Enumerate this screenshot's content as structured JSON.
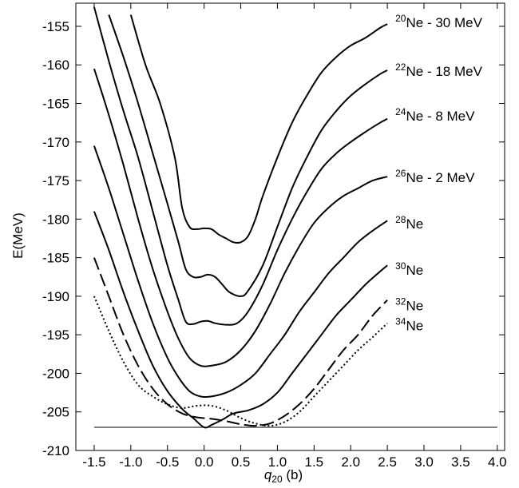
{
  "chart_data": {
    "type": "line",
    "xlabel": {
      "base": "q",
      "sub": "20",
      "unit": " (b)"
    },
    "ylabel": "E(MeV)",
    "xlim": [
      -1.75,
      4.1
    ],
    "ylim": [
      -210,
      -152
    ],
    "xticks": [
      {
        "value": -1.5,
        "label": "-1.5"
      },
      {
        "value": -1.0,
        "label": "-1.0"
      },
      {
        "value": -0.5,
        "label": "-0.5"
      },
      {
        "value": 0.0,
        "label": "0.0"
      },
      {
        "value": 0.5,
        "label": "0.5"
      },
      {
        "value": 1.0,
        "label": "1.0"
      },
      {
        "value": 1.5,
        "label": "1.5"
      },
      {
        "value": 2.0,
        "label": "2.0"
      },
      {
        "value": 2.5,
        "label": "2.5"
      },
      {
        "value": 3.0,
        "label": "3.0"
      },
      {
        "value": 3.5,
        "label": "3.5"
      },
      {
        "value": 4.0,
        "label": "4.0"
      }
    ],
    "yticks": [
      {
        "value": -155,
        "label": "-155"
      },
      {
        "value": -160,
        "label": "-160"
      },
      {
        "value": -165,
        "label": "-165"
      },
      {
        "value": -170,
        "label": "-170"
      },
      {
        "value": -175,
        "label": "-175"
      },
      {
        "value": -180,
        "label": "-180"
      },
      {
        "value": -185,
        "label": "-185"
      },
      {
        "value": -190,
        "label": "-190"
      },
      {
        "value": -195,
        "label": "-195"
      },
      {
        "value": -200,
        "label": "-200"
      },
      {
        "value": -205,
        "label": "-205"
      },
      {
        "value": -210,
        "label": "-210"
      }
    ],
    "reference_line": {
      "y": -207,
      "x": [
        -1.5,
        4.0
      ]
    },
    "series": [
      {
        "mass": "20",
        "element": "Ne",
        "suffix": " - 30 MeV",
        "dash": "solid",
        "label_y": -154.5,
        "points": [
          [
            -1.0,
            -153.5
          ],
          [
            -0.8,
            -160
          ],
          [
            -0.6,
            -165
          ],
          [
            -0.4,
            -172
          ],
          [
            -0.3,
            -178.5
          ],
          [
            -0.2,
            -181
          ],
          [
            -0.1,
            -181.3
          ],
          [
            0.0,
            -181.2
          ],
          [
            0.1,
            -181.3
          ],
          [
            0.2,
            -182
          ],
          [
            0.3,
            -182.5
          ],
          [
            0.4,
            -183
          ],
          [
            0.5,
            -183
          ],
          [
            0.6,
            -182.2
          ],
          [
            0.7,
            -180
          ],
          [
            0.8,
            -177
          ],
          [
            1.0,
            -172
          ],
          [
            1.2,
            -167.5
          ],
          [
            1.4,
            -164
          ],
          [
            1.6,
            -161
          ],
          [
            1.8,
            -159
          ],
          [
            2.0,
            -157.5
          ],
          [
            2.2,
            -156.5
          ],
          [
            2.4,
            -155.2
          ],
          [
            2.5,
            -154.7
          ]
        ]
      },
      {
        "mass": "22",
        "element": "Ne",
        "suffix": " - 18 MeV",
        "dash": "solid",
        "label_y": -160.8,
        "points": [
          [
            -1.3,
            -153.5
          ],
          [
            -1.1,
            -159
          ],
          [
            -0.9,
            -165
          ],
          [
            -0.7,
            -171.5
          ],
          [
            -0.5,
            -178
          ],
          [
            -0.35,
            -183
          ],
          [
            -0.25,
            -186.5
          ],
          [
            -0.15,
            -187.5
          ],
          [
            -0.05,
            -187.5
          ],
          [
            0.05,
            -187.2
          ],
          [
            0.15,
            -187.5
          ],
          [
            0.25,
            -188.5
          ],
          [
            0.35,
            -189.5
          ],
          [
            0.5,
            -190
          ],
          [
            0.6,
            -189.3
          ],
          [
            0.8,
            -186
          ],
          [
            1.0,
            -181
          ],
          [
            1.2,
            -176
          ],
          [
            1.4,
            -172
          ],
          [
            1.6,
            -168.5
          ],
          [
            1.8,
            -166
          ],
          [
            2.0,
            -164
          ],
          [
            2.2,
            -162.5
          ],
          [
            2.4,
            -161.2
          ],
          [
            2.5,
            -160.7
          ]
        ]
      },
      {
        "mass": "24",
        "element": "Ne",
        "suffix": " - 8 MeV",
        "dash": "solid",
        "label_y": -166.6,
        "points": [
          [
            -1.5,
            -152.5
          ],
          [
            -1.3,
            -159.5
          ],
          [
            -1.1,
            -166
          ],
          [
            -0.9,
            -172
          ],
          [
            -0.7,
            -179
          ],
          [
            -0.5,
            -186
          ],
          [
            -0.35,
            -190.5
          ],
          [
            -0.25,
            -193.3
          ],
          [
            -0.15,
            -193.6
          ],
          [
            -0.05,
            -193.3
          ],
          [
            0.05,
            -193.2
          ],
          [
            0.15,
            -193.5
          ],
          [
            0.3,
            -193.7
          ],
          [
            0.45,
            -193.5
          ],
          [
            0.6,
            -192
          ],
          [
            0.8,
            -188.5
          ],
          [
            1.0,
            -184
          ],
          [
            1.2,
            -180
          ],
          [
            1.4,
            -176.5
          ],
          [
            1.6,
            -173.5
          ],
          [
            1.8,
            -171.5
          ],
          [
            2.0,
            -170
          ],
          [
            2.2,
            -168.7
          ],
          [
            2.4,
            -167.5
          ],
          [
            2.5,
            -167
          ]
        ]
      },
      {
        "mass": "26",
        "element": "Ne",
        "suffix": " - 2 MeV",
        "dash": "solid",
        "label_y": -174.6,
        "points": [
          [
            -1.5,
            -160.5
          ],
          [
            -1.3,
            -166.5
          ],
          [
            -1.1,
            -173
          ],
          [
            -0.9,
            -180
          ],
          [
            -0.7,
            -186.5
          ],
          [
            -0.5,
            -192
          ],
          [
            -0.35,
            -195.5
          ],
          [
            -0.2,
            -198
          ],
          [
            -0.05,
            -199
          ],
          [
            0.1,
            -199
          ],
          [
            0.3,
            -198.5
          ],
          [
            0.5,
            -197
          ],
          [
            0.7,
            -194.5
          ],
          [
            0.9,
            -191
          ],
          [
            1.1,
            -187
          ],
          [
            1.3,
            -183.5
          ],
          [
            1.5,
            -180.5
          ],
          [
            1.7,
            -178.5
          ],
          [
            1.9,
            -177
          ],
          [
            2.1,
            -176
          ],
          [
            2.3,
            -175
          ],
          [
            2.5,
            -174.5
          ]
        ]
      },
      {
        "mass": "28",
        "element": "Ne",
        "suffix": "",
        "dash": "solid",
        "label_y": -180.6,
        "points": [
          [
            -1.5,
            -170.5
          ],
          [
            -1.3,
            -176
          ],
          [
            -1.1,
            -182
          ],
          [
            -0.9,
            -188
          ],
          [
            -0.7,
            -193.5
          ],
          [
            -0.5,
            -198
          ],
          [
            -0.35,
            -200.5
          ],
          [
            -0.2,
            -202.3
          ],
          [
            -0.05,
            -203
          ],
          [
            0.1,
            -203
          ],
          [
            0.3,
            -202.5
          ],
          [
            0.5,
            -201.5
          ],
          [
            0.7,
            -200
          ],
          [
            0.9,
            -197.5
          ],
          [
            1.1,
            -195
          ],
          [
            1.3,
            -192
          ],
          [
            1.5,
            -189.5
          ],
          [
            1.7,
            -187
          ],
          [
            1.9,
            -185
          ],
          [
            2.1,
            -183
          ],
          [
            2.3,
            -181.5
          ],
          [
            2.5,
            -180.2
          ]
        ]
      },
      {
        "mass": "30",
        "element": "Ne",
        "suffix": "",
        "dash": "solid",
        "label_y": -186.6,
        "points": [
          [
            -1.5,
            -179
          ],
          [
            -1.3,
            -184
          ],
          [
            -1.1,
            -189.5
          ],
          [
            -0.9,
            -194.5
          ],
          [
            -0.7,
            -199
          ],
          [
            -0.5,
            -202.3
          ],
          [
            -0.3,
            -204.6
          ],
          [
            -0.15,
            -205.8
          ],
          [
            0.0,
            -207
          ],
          [
            0.1,
            -206.7
          ],
          [
            0.25,
            -206
          ],
          [
            0.4,
            -205.2
          ],
          [
            0.6,
            -204.8
          ],
          [
            0.8,
            -204
          ],
          [
            1.0,
            -202.5
          ],
          [
            1.2,
            -200
          ],
          [
            1.4,
            -197.5
          ],
          [
            1.6,
            -195
          ],
          [
            1.8,
            -192.5
          ],
          [
            2.0,
            -190.5
          ],
          [
            2.2,
            -188.5
          ],
          [
            2.4,
            -186.8
          ],
          [
            2.5,
            -186
          ]
        ]
      },
      {
        "mass": "32",
        "element": "Ne",
        "suffix": "",
        "dash": "long-dash",
        "label_y": -191.2,
        "points": [
          [
            -1.5,
            -185
          ],
          [
            -1.3,
            -190
          ],
          [
            -1.1,
            -195
          ],
          [
            -0.9,
            -199
          ],
          [
            -0.7,
            -202
          ],
          [
            -0.5,
            -204
          ],
          [
            -0.3,
            -205.2
          ],
          [
            -0.1,
            -205.7
          ],
          [
            0.1,
            -205.9
          ],
          [
            0.3,
            -206.2
          ],
          [
            0.5,
            -206.6
          ],
          [
            0.7,
            -206.8
          ],
          [
            0.9,
            -206.5
          ],
          [
            1.1,
            -205.5
          ],
          [
            1.3,
            -204
          ],
          [
            1.5,
            -202
          ],
          [
            1.7,
            -199.5
          ],
          [
            1.9,
            -197
          ],
          [
            2.1,
            -195
          ],
          [
            2.3,
            -192.5
          ],
          [
            2.5,
            -190.5
          ]
        ]
      },
      {
        "mass": "34",
        "element": "Ne",
        "suffix": "",
        "dash": "dotted",
        "label_y": -193.8,
        "points": [
          [
            -1.5,
            -190
          ],
          [
            -1.3,
            -194.5
          ],
          [
            -1.1,
            -198.5
          ],
          [
            -0.9,
            -201.5
          ],
          [
            -0.7,
            -203
          ],
          [
            -0.5,
            -204
          ],
          [
            -0.3,
            -204.5
          ],
          [
            -0.1,
            -204.2
          ],
          [
            0.1,
            -204.2
          ],
          [
            0.3,
            -204.8
          ],
          [
            0.5,
            -205.8
          ],
          [
            0.7,
            -206.5
          ],
          [
            0.9,
            -206.8
          ],
          [
            1.1,
            -206.3
          ],
          [
            1.3,
            -205
          ],
          [
            1.5,
            -203
          ],
          [
            1.7,
            -201
          ],
          [
            1.9,
            -199
          ],
          [
            2.1,
            -197
          ],
          [
            2.3,
            -195.3
          ],
          [
            2.5,
            -193.5
          ]
        ]
      }
    ]
  }
}
